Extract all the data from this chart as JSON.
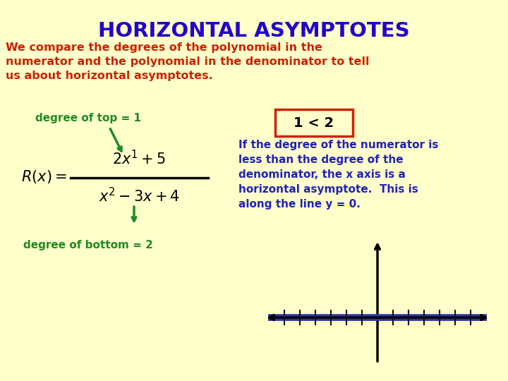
{
  "title": "HORIZONTAL ASYMPTOTES",
  "title_color": "#2200CC",
  "bg_color": "#FFFFCC",
  "body_text": "We compare the degrees of the polynomial in the\nnumerator and the polynomial in the denominator to tell\nus about horizontal asymptotes.",
  "body_color": "#CC2200",
  "degree_top_label": "degree of top = 1",
  "degree_top_color": "#228B22",
  "degree_bottom_label": "degree of bottom = 2",
  "degree_bottom_color": "#228B22",
  "inequality_text": "1 < 2",
  "inequality_color": "#000000",
  "inequality_box_color": "#CC2200",
  "explanation_lines": "If the degree of the numerator is\nless than the degree of the\ndenominator, the x axis is a\nhorizontal asymptote.  This is\nalong the line y = 0.",
  "explanation_color": "#2222BB",
  "arrow_color": "#000000",
  "highlight_color": "#3333AA"
}
